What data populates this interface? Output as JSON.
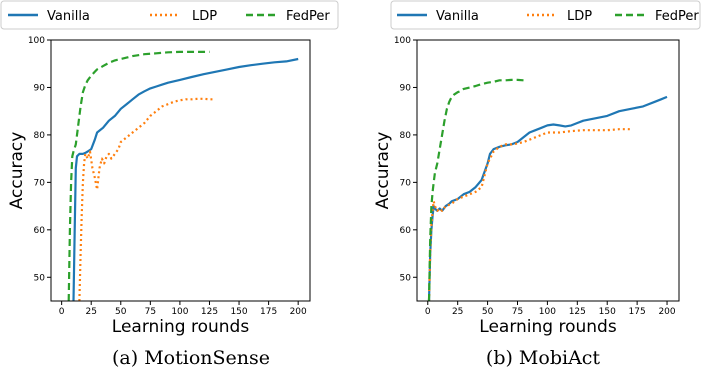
{
  "legend": [
    {
      "name": "Vanilla",
      "color": "#1f77b4",
      "dash": "solid"
    },
    {
      "name": "LDP",
      "color": "#ff7f0e",
      "dash": "dotted"
    },
    {
      "name": "FedPer",
      "color": "#2ca02c",
      "dash": "dashed"
    }
  ],
  "chart_data": [
    {
      "type": "line",
      "caption": "(a) MotionSense",
      "xlabel": "Learning rounds",
      "ylabel": "Accuracy",
      "xlim": [
        -9,
        210
      ],
      "ylim": [
        45,
        100
      ],
      "xticks": [
        0,
        25,
        50,
        75,
        100,
        125,
        150,
        175,
        200
      ],
      "yticks": [
        50,
        60,
        70,
        80,
        90,
        100
      ],
      "grid": false,
      "legend_position": "top",
      "series": [
        {
          "name": "Vanilla",
          "color": "#1f77b4",
          "x": [
            10,
            11,
            12,
            13,
            15,
            18,
            20,
            22,
            25,
            28,
            30,
            35,
            40,
            45,
            50,
            55,
            60,
            65,
            70,
            75,
            80,
            85,
            90,
            95,
            100,
            110,
            120,
            130,
            140,
            150,
            160,
            170,
            180,
            190,
            200
          ],
          "y": [
            45,
            60,
            73,
            75.5,
            76,
            76,
            76.2,
            76.5,
            77,
            79,
            80.5,
            81.5,
            83,
            84,
            85.5,
            86.5,
            87.5,
            88.5,
            89.2,
            89.8,
            90.2,
            90.6,
            91,
            91.3,
            91.6,
            92.2,
            92.8,
            93.3,
            93.8,
            94.3,
            94.7,
            95,
            95.3,
            95.5,
            96
          ]
        },
        {
          "name": "LDP",
          "color": "#ff7f0e",
          "x": [
            15,
            16,
            17,
            18,
            19,
            20,
            22,
            24,
            26,
            28,
            30,
            32,
            34,
            36,
            38,
            40,
            42,
            45,
            48,
            50,
            55,
            60,
            65,
            70,
            75,
            80,
            85,
            90,
            95,
            100,
            105,
            110,
            115,
            120,
            125,
            130
          ],
          "y": [
            45,
            55,
            63,
            70,
            74,
            76,
            75,
            76.5,
            73,
            71,
            68.5,
            73,
            75,
            74,
            75.5,
            76,
            75,
            76,
            77,
            78.5,
            79.5,
            80.5,
            81.5,
            82.5,
            84,
            85,
            86,
            86.5,
            87,
            87.3,
            87.5,
            87.5,
            87.6,
            87.6,
            87.5,
            87.5
          ]
        },
        {
          "name": "FedPer",
          "color": "#2ca02c",
          "x": [
            6,
            7,
            8,
            9,
            10,
            12,
            14,
            16,
            18,
            20,
            22,
            25,
            28,
            30,
            35,
            40,
            45,
            50,
            55,
            60,
            70,
            80,
            90,
            100,
            110,
            120,
            125
          ],
          "y": [
            45,
            60,
            70,
            75.5,
            76.5,
            78,
            82,
            86,
            89,
            90.5,
            91.5,
            92.5,
            93.3,
            93.8,
            94.5,
            95.2,
            95.7,
            96,
            96.3,
            96.6,
            97,
            97.2,
            97.4,
            97.5,
            97.5,
            97.5,
            97.5
          ]
        }
      ]
    },
    {
      "type": "line",
      "caption": "(b) MobiAct",
      "xlabel": "Learning rounds",
      "ylabel": "Accuracy",
      "xlim": [
        -9,
        210
      ],
      "ylim": [
        45,
        100
      ],
      "xticks": [
        0,
        25,
        50,
        75,
        100,
        125,
        150,
        175,
        200
      ],
      "yticks": [
        50,
        60,
        70,
        80,
        90,
        100
      ],
      "grid": false,
      "legend_position": "top",
      "series": [
        {
          "name": "Vanilla",
          "color": "#1f77b4",
          "x": [
            1,
            2,
            3,
            4,
            5,
            6,
            8,
            10,
            12,
            15,
            18,
            20,
            25,
            30,
            35,
            40,
            45,
            50,
            52,
            55,
            60,
            65,
            70,
            75,
            80,
            85,
            90,
            95,
            100,
            105,
            110,
            115,
            120,
            125,
            130,
            140,
            150,
            160,
            170,
            180,
            190,
            195,
            200
          ],
          "y": [
            45,
            55,
            60,
            63,
            65,
            64.5,
            64,
            64.5,
            64,
            65,
            65.5,
            66,
            66.5,
            67.5,
            68,
            69,
            70.5,
            74,
            76,
            77,
            77.5,
            77.8,
            78,
            78.5,
            79.5,
            80.5,
            81,
            81.5,
            82,
            82.2,
            82,
            81.8,
            82,
            82.5,
            83,
            83.5,
            84,
            85,
            85.5,
            86,
            87,
            87.5,
            88
          ]
        },
        {
          "name": "LDP",
          "color": "#ff7f0e",
          "x": [
            1,
            2,
            3,
            4,
            5,
            6,
            8,
            10,
            12,
            15,
            20,
            25,
            30,
            40,
            45,
            50,
            55,
            60,
            65,
            70,
            75,
            80,
            85,
            90,
            95,
            100,
            110,
            120,
            130,
            140,
            150,
            160,
            170
          ],
          "y": [
            45,
            55,
            61,
            64,
            66,
            65,
            64,
            64.5,
            64,
            65,
            65.5,
            66.5,
            67,
            68,
            69,
            74,
            76.5,
            77.5,
            78,
            78,
            78.2,
            78.5,
            79,
            79.5,
            80,
            80.5,
            80.5,
            80.8,
            81,
            81,
            81,
            81.2,
            81.2
          ]
        },
        {
          "name": "FedPer",
          "color": "#2ca02c",
          "x": [
            1,
            2,
            3,
            4,
            5,
            6,
            8,
            10,
            12,
            14,
            16,
            18,
            20,
            22,
            25,
            28,
            30,
            35,
            40,
            45,
            50,
            55,
            60,
            65,
            70,
            75,
            80
          ],
          "y": [
            45,
            58,
            65,
            68,
            70,
            72,
            74,
            77,
            80,
            83,
            85.5,
            87,
            88,
            88.5,
            89,
            89.3,
            89.7,
            90,
            90.3,
            90.7,
            91,
            91.2,
            91.5,
            91.5,
            91.6,
            91.6,
            91.5
          ]
        }
      ]
    }
  ]
}
